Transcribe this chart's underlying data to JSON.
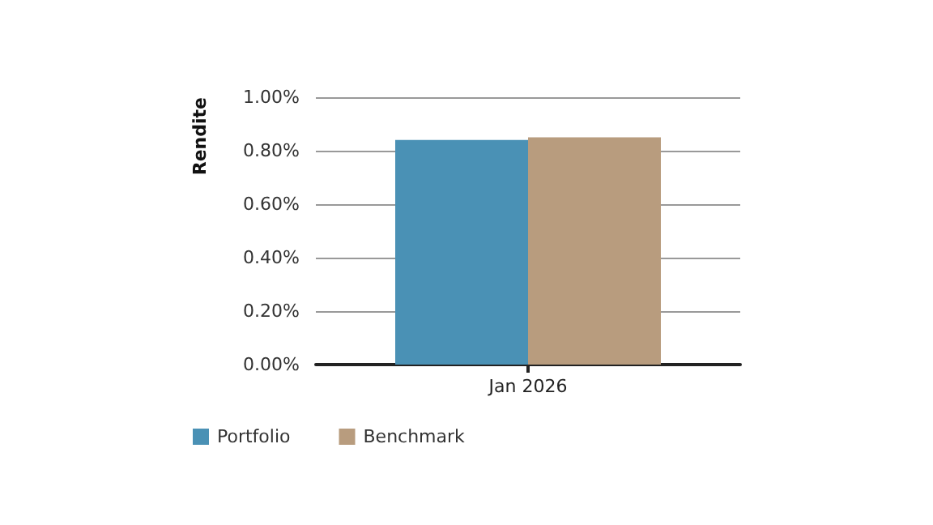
{
  "chart_data": {
    "type": "bar",
    "ylabel": "Rendite",
    "categories": [
      "Jan 2026"
    ],
    "series": [
      {
        "name": "Portfolio",
        "color": "#4a91b5",
        "values": [
          0.84
        ]
      },
      {
        "name": "Benchmark",
        "color": "#b89c7e",
        "values": [
          0.85
        ]
      }
    ],
    "ylim": [
      0,
      1
    ],
    "yticks": [
      {
        "value": 0,
        "label": "0.00%"
      },
      {
        "value": 0.2,
        "label": "0.20%"
      },
      {
        "value": 0.4,
        "label": "0.40%"
      },
      {
        "value": 0.6,
        "label": "0.60%"
      },
      {
        "value": 0.8,
        "label": "0.80%"
      },
      {
        "value": 1,
        "label": "1.00%"
      }
    ],
    "grid": "y",
    "legend": "bottom left"
  }
}
